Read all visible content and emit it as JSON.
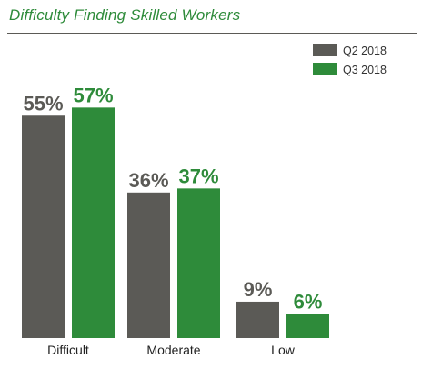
{
  "chart_data": {
    "type": "bar",
    "title": "Difficulty Finding Skilled Workers",
    "categories": [
      "Difficult",
      "Moderate",
      "Low"
    ],
    "series": [
      {
        "name": "Q2 2018",
        "values": [
          55,
          36,
          9
        ],
        "labels": [
          "55%",
          "36%",
          "9%"
        ],
        "color": "#5b5a56"
      },
      {
        "name": "Q3 2018",
        "values": [
          57,
          37,
          6
        ],
        "labels": [
          "57%",
          "37%",
          "6%"
        ],
        "color": "#2e8b3a"
      }
    ],
    "ylim": [
      0,
      100
    ],
    "grid": false,
    "legend_position": "top-right",
    "unit": "%"
  }
}
